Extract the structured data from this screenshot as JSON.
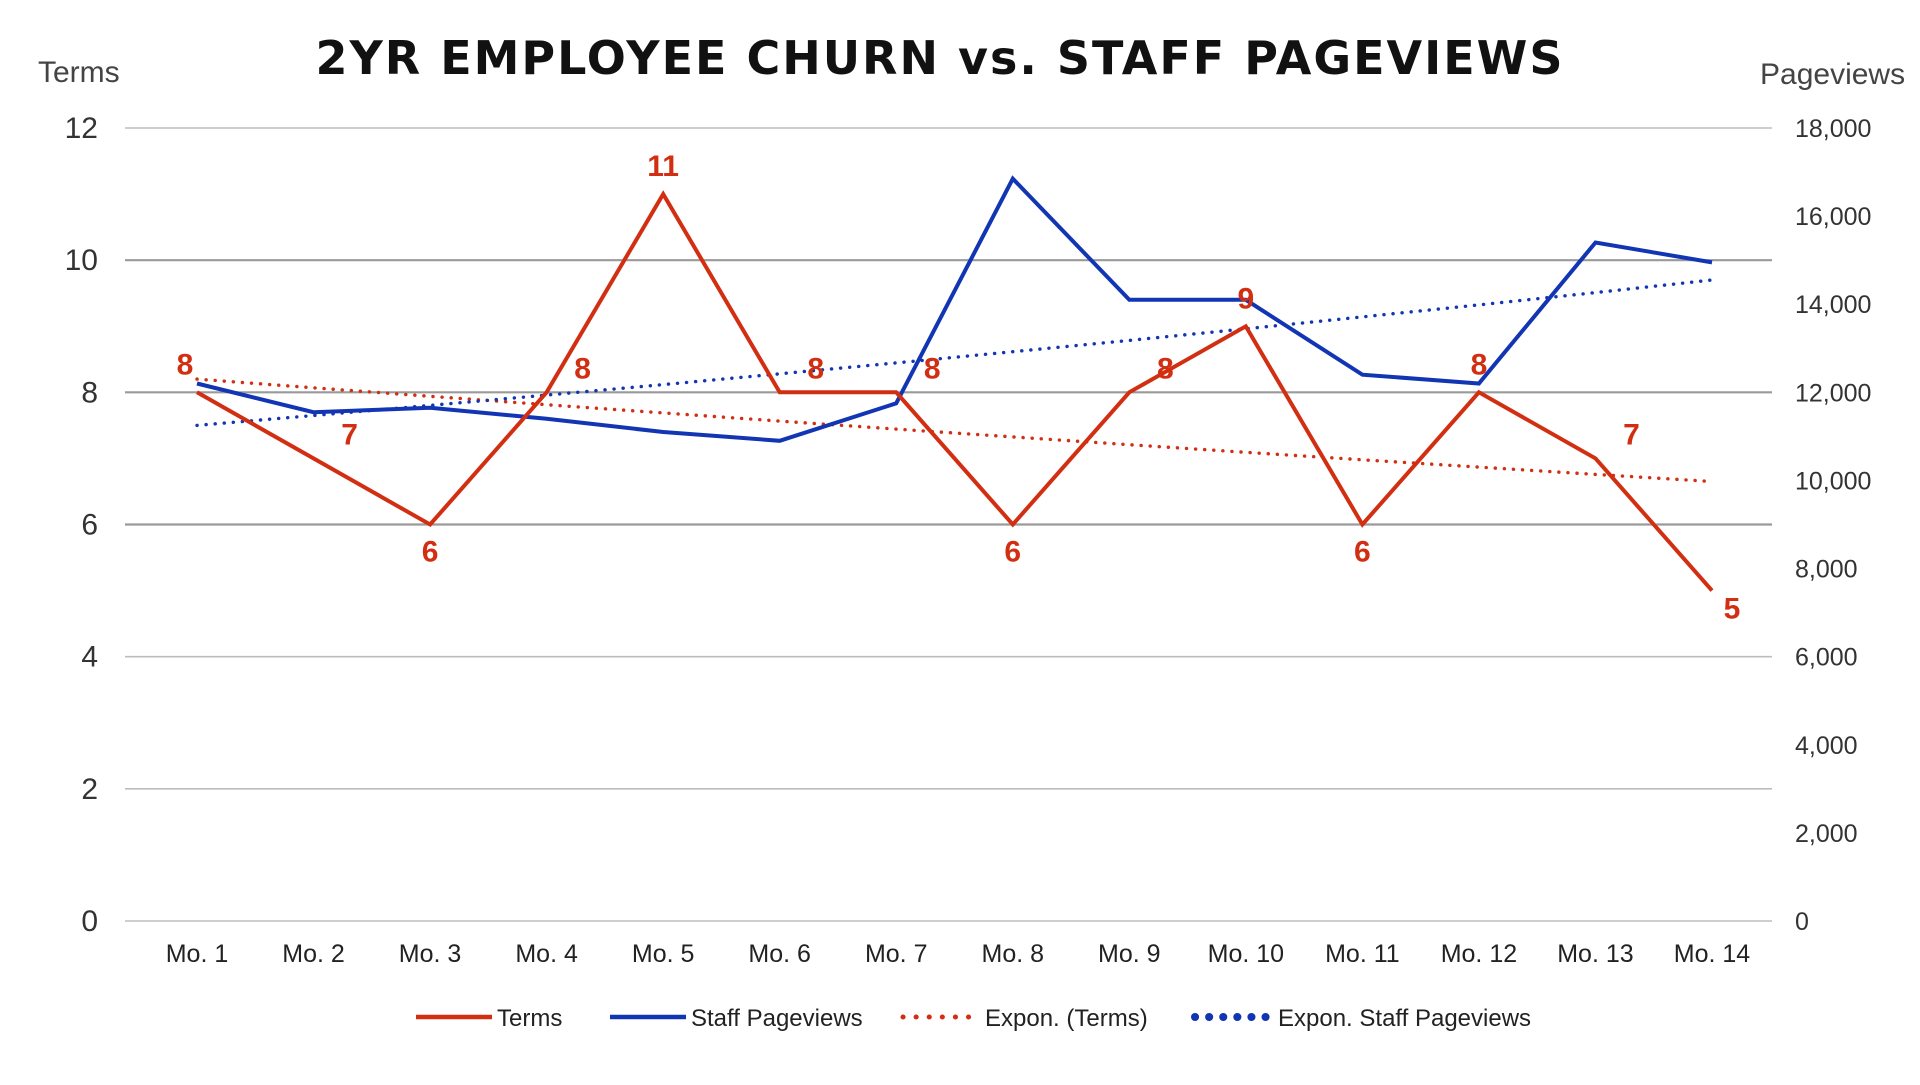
{
  "chart_data": {
    "type": "line",
    "title": "2YR EMPLOYEE CHURN vs. STAFF PAGEVIEWS",
    "ylabel_left": "Terms",
    "ylabel_right": "Pageviews",
    "categories": [
      "Mo. 1",
      "Mo. 2",
      "Mo. 3",
      "Mo. 4",
      "Mo. 5",
      "Mo. 6",
      "Mo. 7",
      "Mo. 8",
      "Mo. 9",
      "Mo. 10",
      "Mo. 11",
      "Mo. 12",
      "Mo. 13",
      "Mo. 14"
    ],
    "ylim_left": [
      0,
      12
    ],
    "yticks_left": [
      "0",
      "2",
      "4",
      "6",
      "8",
      "10",
      "12"
    ],
    "ylim_right": [
      0,
      18000
    ],
    "yticks_right": [
      "0",
      "2,000",
      "4,000",
      "6,000",
      "8,000",
      "10,000",
      "12,000",
      "14,000",
      "16,000",
      "18,000"
    ],
    "grid": true,
    "legend_position": "bottom",
    "series": [
      {
        "name": "Terms",
        "axis": "left",
        "color": "#d22f12",
        "values": [
          8,
          7,
          6,
          8,
          11,
          8,
          8,
          6,
          8,
          9,
          6,
          8,
          7,
          5
        ],
        "data_labels": [
          "8",
          "7",
          "6",
          "8",
          "11",
          "8",
          "8",
          "6",
          "8",
          "9",
          "6",
          "8",
          "7",
          "5"
        ]
      },
      {
        "name": "Staff Pageviews",
        "axis": "right",
        "color": "#1235b4",
        "values": [
          12200,
          11550,
          11650,
          11400,
          11100,
          10900,
          11750,
          16850,
          14100,
          14100,
          12400,
          12200,
          15400,
          14950
        ]
      }
    ],
    "trendlines": [
      {
        "name": "Expon. (Terms)",
        "axis": "left",
        "color": "#d22f12",
        "start": 8.2,
        "end": 6.65
      },
      {
        "name": "Expon. Staff Pageviews",
        "axis": "right",
        "color": "#1235b4",
        "start": 11250,
        "end": 14550
      }
    ]
  }
}
